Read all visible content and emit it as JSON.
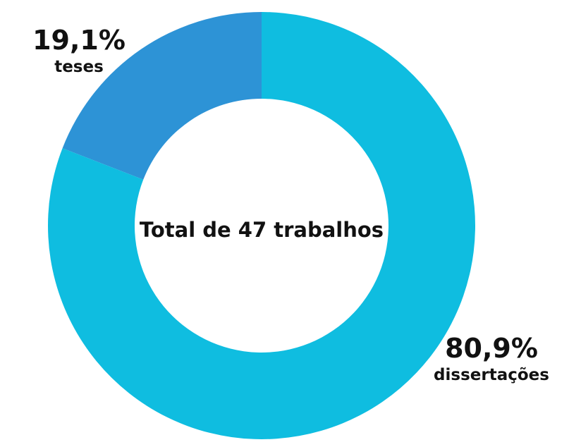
{
  "chart_data": {
    "type": "pie",
    "variant": "donut",
    "center_label": "Total de 47 trabalhos",
    "slices": [
      {
        "label": "teses",
        "value": 19.1,
        "value_label": "19,1%",
        "color": "#2d93d6"
      },
      {
        "label": "dissertações",
        "value": 80.9,
        "value_label": "80,9%",
        "color": "#0fbde0"
      }
    ]
  }
}
